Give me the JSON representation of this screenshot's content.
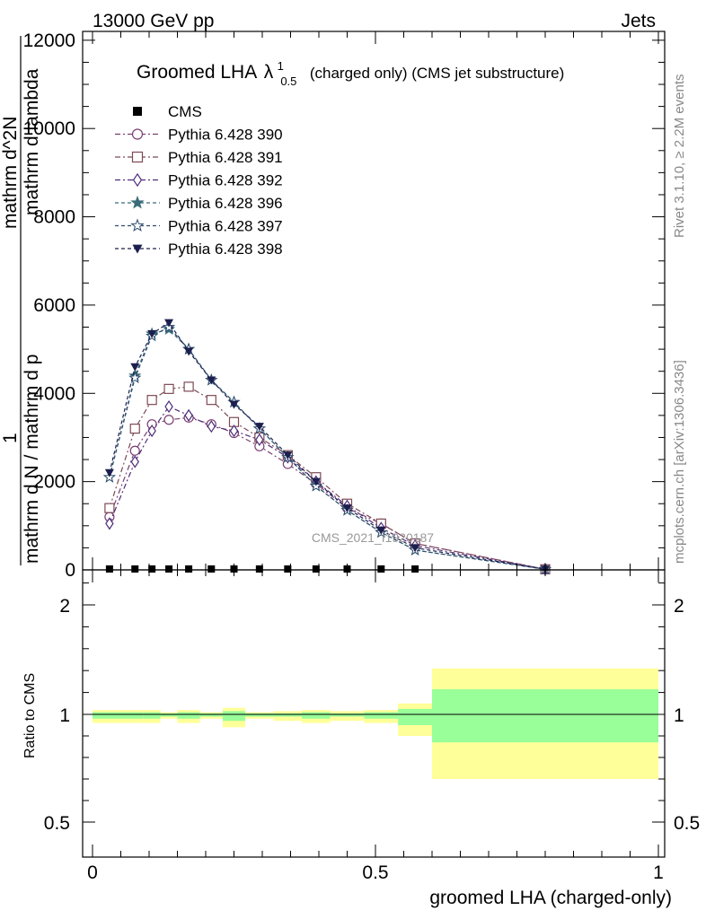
{
  "header": {
    "left": "13000 GeV pp",
    "right": "Jets"
  },
  "side": {
    "rivet": "Rivet 3.1.10, ≥ 2.2M events",
    "mcplots": "mcplots.cern.ch [arXiv:1306.3436]"
  },
  "watermark": "CMS_2021_I1920187",
  "colors": {
    "band_inner": "#99ff99",
    "band_outer": "#ffff99",
    "data_marker": "#000000"
  },
  "chart_data": [
    {
      "type": "line",
      "title_main": "Groomed LHA",
      "title_lambda": "λ",
      "title_sup": "1",
      "title_sub": "0.5",
      "title_rest": "(charged only) (CMS jet substructure)",
      "ylabel_main": "mathrm d N / mathrm d p",
      "ylabel_top": "mathrm d",
      "ylabel_mid": "mathrm d lambda",
      "ylabel_dN": "mathrm d",
      "ylabel_one": "1",
      "ylabel_n": "N",
      "ylabel_pt": "T",
      "ylabel_ptmathrm": "mathrm d p",
      "ylabel_full_top": "mathrm d^2N",
      "ylabel_lambda": "mathrm d lambda",
      "xlim": [
        0,
        1
      ],
      "ylim": [
        0,
        12200
      ],
      "yticks": [
        0,
        2000,
        4000,
        6000,
        8000,
        10000,
        12000
      ],
      "ytick_labels": [
        "0",
        "2000",
        "4000",
        "6000",
        "8000",
        "10000",
        "12000"
      ],
      "x": [
        0.03,
        0.075,
        0.105,
        0.135,
        0.17,
        0.21,
        0.25,
        0.295,
        0.345,
        0.395,
        0.45,
        0.51,
        0.57,
        0.8
      ],
      "series": [
        {
          "name": "CMS",
          "marker": "square-filled",
          "color": "#000000",
          "dash": "none",
          "values": [
            0,
            0,
            0,
            0,
            0,
            0,
            0,
            0,
            0,
            0,
            0,
            0,
            0,
            0
          ]
        },
        {
          "name": "Pythia 6.428 390",
          "marker": "circle-open",
          "color": "#7b3f72",
          "dash": "6,3,2,3",
          "values": [
            1200,
            2700,
            3300,
            3400,
            3450,
            3300,
            3100,
            2800,
            2400,
            1950,
            1400,
            1050,
            600,
            15
          ]
        },
        {
          "name": "Pythia 6.428 391",
          "marker": "square-open",
          "color": "#7d4a55",
          "dash": "6,3,2,3",
          "values": [
            1400,
            3200,
            3850,
            4100,
            4150,
            3850,
            3350,
            3000,
            2600,
            2100,
            1500,
            1050,
            600,
            15
          ]
        },
        {
          "name": "Pythia 6.428 392",
          "marker": "diamond-open",
          "color": "#4e2e78",
          "dash": "6,3,2,3",
          "values": [
            1050,
            2450,
            3150,
            3700,
            3500,
            3250,
            3150,
            2950,
            2550,
            2000,
            1450,
            950,
            550,
            15
          ]
        },
        {
          "name": "Pythia 6.428 396",
          "marker": "star-filled",
          "color": "#3a6b7a",
          "dash": "4,3",
          "values": [
            2100,
            4400,
            5350,
            5450,
            5000,
            4300,
            3800,
            3200,
            2550,
            1900,
            1350,
            850,
            450,
            15
          ]
        },
        {
          "name": "Pythia 6.428 397",
          "marker": "star-open",
          "color": "#2f4e6e",
          "dash": "4,3",
          "values": [
            2100,
            4350,
            5300,
            5500,
            5000,
            4300,
            3800,
            3200,
            2550,
            1900,
            1350,
            850,
            450,
            15
          ]
        },
        {
          "name": "Pythia 6.428 398",
          "marker": "triangle-down-filled",
          "color": "#1c1f4e",
          "dash": "4,3",
          "values": [
            2200,
            4600,
            5350,
            5600,
            4950,
            4300,
            3750,
            3250,
            2600,
            2000,
            1400,
            900,
            500,
            15
          ]
        }
      ]
    },
    {
      "type": "area",
      "ylabel": "Ratio to CMS",
      "xlabel": "groomed LHA (charged-only)",
      "xlim": [
        0,
        1
      ],
      "ylim": [
        0.35,
        2.3
      ],
      "ytick_labels": [
        "0.5",
        "1",
        "2"
      ],
      "yticks": [
        0.5,
        1,
        2
      ],
      "xticks": [
        0,
        0.5,
        1
      ],
      "xtick_labels": [
        "0",
        "0.5",
        "1"
      ],
      "bins": [
        0,
        0.09,
        0.12,
        0.15,
        0.19,
        0.23,
        0.27,
        0.32,
        0.37,
        0.42,
        0.48,
        0.54,
        0.6,
        1
      ],
      "inner_lo": [
        0.98,
        0.98,
        0.99,
        0.98,
        0.99,
        0.97,
        0.99,
        0.99,
        0.98,
        0.99,
        0.98,
        0.95,
        0.87
      ],
      "inner_hi": [
        1.02,
        1.02,
        1.01,
        1.02,
        1.01,
        1.03,
        1.01,
        1.01,
        1.02,
        1.01,
        1.02,
        1.05,
        1.23
      ],
      "outer_lo": [
        0.96,
        0.96,
        0.98,
        0.96,
        0.98,
        0.94,
        0.98,
        0.97,
        0.96,
        0.97,
        0.96,
        0.9,
        0.7
      ],
      "outer_hi": [
        1.04,
        1.04,
        1.02,
        1.04,
        1.02,
        1.06,
        1.02,
        1.03,
        1.04,
        1.03,
        1.04,
        1.1,
        1.42
      ],
      "reference": 1
    }
  ]
}
